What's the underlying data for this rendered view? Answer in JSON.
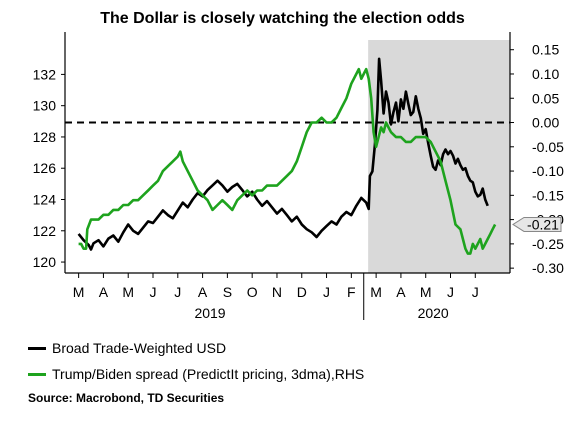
{
  "chart_data": {
    "type": "line",
    "title": "The Dollar is closely watching the election odds",
    "x_months": [
      "M",
      "A",
      "M",
      "J",
      "J",
      "A",
      "S",
      "O",
      "N",
      "D",
      "J",
      "F",
      "M",
      "A",
      "M",
      "J",
      "J"
    ],
    "x_years": [
      "2019",
      "2020"
    ],
    "left_axis": {
      "ticks": [
        120,
        122,
        124,
        126,
        128,
        130,
        132
      ],
      "ylim": [
        119.3,
        134.2
      ]
    },
    "right_axis": {
      "ticks": [
        "0.15",
        "0.10",
        "0.05",
        "0.00",
        "-0.05",
        "-0.10",
        "-0.15",
        "-0.20",
        "-0.25",
        "-0.30"
      ],
      "ylim": [
        -0.31,
        0.17
      ]
    },
    "reference_line": {
      "axis": "right",
      "value": 0.0
    },
    "shaded_region": {
      "from_month_index": 12.0,
      "to_month_index": 17.4
    },
    "end_callout": {
      "axis": "right",
      "value": -0.21,
      "label": "-0.21"
    },
    "series": [
      {
        "name": "Broad Trade-Weighted USD",
        "axis": "left",
        "color": "#000000",
        "points": [
          [
            0.0,
            121.8
          ],
          [
            0.2,
            121.4
          ],
          [
            0.4,
            121.1
          ],
          [
            0.5,
            120.8
          ],
          [
            0.6,
            121.2
          ],
          [
            0.8,
            121.4
          ],
          [
            1.0,
            121.0
          ],
          [
            1.2,
            121.5
          ],
          [
            1.4,
            121.7
          ],
          [
            1.6,
            121.3
          ],
          [
            1.8,
            121.9
          ],
          [
            2.0,
            122.4
          ],
          [
            2.2,
            122.0
          ],
          [
            2.4,
            121.8
          ],
          [
            2.6,
            122.2
          ],
          [
            2.8,
            122.6
          ],
          [
            3.0,
            122.5
          ],
          [
            3.2,
            122.9
          ],
          [
            3.4,
            123.3
          ],
          [
            3.6,
            123.0
          ],
          [
            3.8,
            122.8
          ],
          [
            4.0,
            123.3
          ],
          [
            4.2,
            123.8
          ],
          [
            4.4,
            123.5
          ],
          [
            4.6,
            124.0
          ],
          [
            4.8,
            124.4
          ],
          [
            5.0,
            124.2
          ],
          [
            5.2,
            124.6
          ],
          [
            5.4,
            124.9
          ],
          [
            5.6,
            125.2
          ],
          [
            5.8,
            124.9
          ],
          [
            6.0,
            124.5
          ],
          [
            6.2,
            124.8
          ],
          [
            6.4,
            125.0
          ],
          [
            6.6,
            124.6
          ],
          [
            6.8,
            124.2
          ],
          [
            7.0,
            124.5
          ],
          [
            7.2,
            124.0
          ],
          [
            7.4,
            123.6
          ],
          [
            7.6,
            123.9
          ],
          [
            7.8,
            123.5
          ],
          [
            8.0,
            123.1
          ],
          [
            8.2,
            123.4
          ],
          [
            8.4,
            123.0
          ],
          [
            8.6,
            122.6
          ],
          [
            8.8,
            122.9
          ],
          [
            9.0,
            122.4
          ],
          [
            9.2,
            122.1
          ],
          [
            9.4,
            121.9
          ],
          [
            9.6,
            121.6
          ],
          [
            9.8,
            122.0
          ],
          [
            10.0,
            122.3
          ],
          [
            10.2,
            122.6
          ],
          [
            10.4,
            122.4
          ],
          [
            10.6,
            122.9
          ],
          [
            10.8,
            123.2
          ],
          [
            11.0,
            123.0
          ],
          [
            11.2,
            123.6
          ],
          [
            11.4,
            124.1
          ],
          [
            11.6,
            123.8
          ],
          [
            11.7,
            123.4
          ],
          [
            11.75,
            125.5
          ],
          [
            11.85,
            125.8
          ],
          [
            11.95,
            127.5
          ],
          [
            12.05,
            129.7
          ],
          [
            12.12,
            133.0
          ],
          [
            12.2,
            131.6
          ],
          [
            12.3,
            129.5
          ],
          [
            12.4,
            130.9
          ],
          [
            12.5,
            130.2
          ],
          [
            12.6,
            128.8
          ],
          [
            12.7,
            129.6
          ],
          [
            12.8,
            130.2
          ],
          [
            12.9,
            129.0
          ],
          [
            13.0,
            130.4
          ],
          [
            13.1,
            129.8
          ],
          [
            13.2,
            130.9
          ],
          [
            13.3,
            130.1
          ],
          [
            13.4,
            129.4
          ],
          [
            13.5,
            129.6
          ],
          [
            13.6,
            130.6
          ],
          [
            13.7,
            129.8
          ],
          [
            13.8,
            129.2
          ],
          [
            13.9,
            128.2
          ],
          [
            14.0,
            128.5
          ],
          [
            14.1,
            127.6
          ],
          [
            14.2,
            126.8
          ],
          [
            14.3,
            126.1
          ],
          [
            14.4,
            125.9
          ],
          [
            14.5,
            126.5
          ],
          [
            14.6,
            126.2
          ],
          [
            14.7,
            126.9
          ],
          [
            14.8,
            127.2
          ],
          [
            14.9,
            126.9
          ],
          [
            15.0,
            127.1
          ],
          [
            15.1,
            126.8
          ],
          [
            15.2,
            126.3
          ],
          [
            15.3,
            126.6
          ],
          [
            15.4,
            126.2
          ],
          [
            15.5,
            125.9
          ],
          [
            15.6,
            126.0
          ],
          [
            15.7,
            125.5
          ],
          [
            15.8,
            125.2
          ],
          [
            15.9,
            125.1
          ],
          [
            16.0,
            124.5
          ],
          [
            16.1,
            124.2
          ],
          [
            16.2,
            124.3
          ],
          [
            16.3,
            124.7
          ],
          [
            16.4,
            124.0
          ],
          [
            16.5,
            123.6
          ]
        ]
      },
      {
        "name": "Trump/Biden spread (PredictIt pricing, 3dma),RHS",
        "axis": "right",
        "color": "#1ea31e",
        "points": [
          [
            0.0,
            -0.25
          ],
          [
            0.1,
            -0.25
          ],
          [
            0.2,
            -0.26
          ],
          [
            0.3,
            -0.26
          ],
          [
            0.35,
            -0.22
          ],
          [
            0.5,
            -0.2
          ],
          [
            0.8,
            -0.2
          ],
          [
            1.0,
            -0.19
          ],
          [
            1.2,
            -0.19
          ],
          [
            1.4,
            -0.18
          ],
          [
            1.6,
            -0.18
          ],
          [
            1.8,
            -0.17
          ],
          [
            2.0,
            -0.17
          ],
          [
            2.2,
            -0.16
          ],
          [
            2.4,
            -0.16
          ],
          [
            2.6,
            -0.15
          ],
          [
            2.8,
            -0.14
          ],
          [
            3.0,
            -0.13
          ],
          [
            3.2,
            -0.12
          ],
          [
            3.4,
            -0.1
          ],
          [
            3.6,
            -0.09
          ],
          [
            3.8,
            -0.08
          ],
          [
            4.0,
            -0.07
          ],
          [
            4.1,
            -0.06
          ],
          [
            4.2,
            -0.08
          ],
          [
            4.4,
            -0.1
          ],
          [
            4.6,
            -0.12
          ],
          [
            4.8,
            -0.14
          ],
          [
            5.0,
            -0.15
          ],
          [
            5.2,
            -0.16
          ],
          [
            5.4,
            -0.18
          ],
          [
            5.6,
            -0.17
          ],
          [
            5.8,
            -0.16
          ],
          [
            6.0,
            -0.17
          ],
          [
            6.2,
            -0.18
          ],
          [
            6.4,
            -0.16
          ],
          [
            6.6,
            -0.15
          ],
          [
            6.8,
            -0.14
          ],
          [
            7.0,
            -0.15
          ],
          [
            7.2,
            -0.14
          ],
          [
            7.4,
            -0.14
          ],
          [
            7.6,
            -0.13
          ],
          [
            7.8,
            -0.13
          ],
          [
            8.0,
            -0.13
          ],
          [
            8.2,
            -0.12
          ],
          [
            8.4,
            -0.11
          ],
          [
            8.6,
            -0.1
          ],
          [
            8.8,
            -0.08
          ],
          [
            9.0,
            -0.05
          ],
          [
            9.2,
            -0.02
          ],
          [
            9.4,
            0.0
          ],
          [
            9.6,
            0.0
          ],
          [
            9.8,
            0.01
          ],
          [
            10.0,
            0.0
          ],
          [
            10.2,
            0.0
          ],
          [
            10.4,
            0.01
          ],
          [
            10.6,
            0.03
          ],
          [
            10.8,
            0.05
          ],
          [
            11.0,
            0.08
          ],
          [
            11.2,
            0.1
          ],
          [
            11.3,
            0.11
          ],
          [
            11.4,
            0.09
          ],
          [
            11.5,
            0.1
          ],
          [
            11.6,
            0.11
          ],
          [
            11.7,
            0.09
          ],
          [
            11.8,
            0.05
          ],
          [
            11.9,
            -0.02
          ],
          [
            12.0,
            -0.05
          ],
          [
            12.1,
            -0.03
          ],
          [
            12.2,
            -0.01
          ],
          [
            12.3,
            -0.02
          ],
          [
            12.4,
            0.0
          ],
          [
            12.5,
            -0.01
          ],
          [
            12.6,
            -0.02
          ],
          [
            12.8,
            -0.03
          ],
          [
            13.0,
            -0.03
          ],
          [
            13.2,
            -0.04
          ],
          [
            13.4,
            -0.04
          ],
          [
            13.6,
            -0.03
          ],
          [
            13.8,
            -0.03
          ],
          [
            14.0,
            -0.03
          ],
          [
            14.2,
            -0.04
          ],
          [
            14.4,
            -0.06
          ],
          [
            14.6,
            -0.08
          ],
          [
            14.8,
            -0.12
          ],
          [
            15.0,
            -0.16
          ],
          [
            15.2,
            -0.21
          ],
          [
            15.4,
            -0.22
          ],
          [
            15.5,
            -0.24
          ],
          [
            15.6,
            -0.26
          ],
          [
            15.7,
            -0.27
          ],
          [
            15.8,
            -0.27
          ],
          [
            15.9,
            -0.25
          ],
          [
            16.0,
            -0.26
          ],
          [
            16.2,
            -0.24
          ],
          [
            16.3,
            -0.26
          ],
          [
            16.4,
            -0.25
          ],
          [
            16.5,
            -0.24
          ],
          [
            16.6,
            -0.23
          ],
          [
            16.7,
            -0.22
          ],
          [
            16.8,
            -0.21
          ]
        ]
      }
    ]
  },
  "legend": {
    "item1": "Broad Trade-Weighted USD",
    "item2": "Trump/Biden spread (PredictIt pricing, 3dma),RHS"
  },
  "source": "Source: Macrobond, TD Securities",
  "colors": {
    "usd": "#000000",
    "spread": "#1ea31e",
    "shade": "#d9d9d9"
  }
}
